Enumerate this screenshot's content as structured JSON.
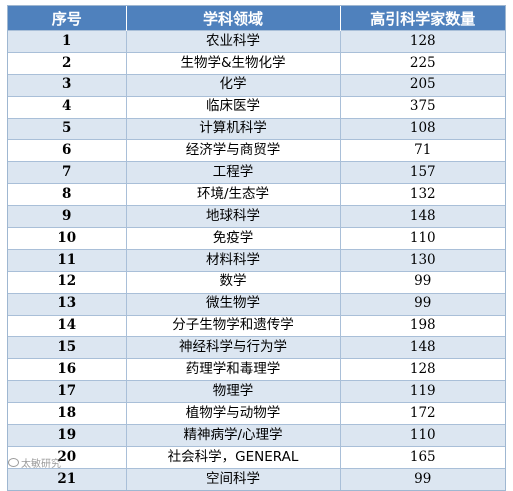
{
  "table": {
    "headers": [
      "序号",
      "学科领域",
      "高引科学家数量"
    ],
    "rows": [
      [
        "1",
        "农业科学",
        "128"
      ],
      [
        "2",
        "生物学&生物化学",
        "225"
      ],
      [
        "3",
        "化学",
        "205"
      ],
      [
        "4",
        "临床医学",
        "375"
      ],
      [
        "5",
        "计算机科学",
        "108"
      ],
      [
        "6",
        "经济学与商贸学",
        "71"
      ],
      [
        "7",
        "工程学",
        "157"
      ],
      [
        "8",
        "环境/生态学",
        "132"
      ],
      [
        "9",
        "地球科学",
        "148"
      ],
      [
        "10",
        "免疫学",
        "110"
      ],
      [
        "11",
        "材料科学",
        "130"
      ],
      [
        "12",
        "数学",
        "99"
      ],
      [
        "13",
        "微生物学",
        "99"
      ],
      [
        "14",
        "分子生物学和遗传学",
        "198"
      ],
      [
        "15",
        "神经科学与行为学",
        "148"
      ],
      [
        "16",
        "药理学和毒理学",
        "128"
      ],
      [
        "17",
        "物理学",
        "119"
      ],
      [
        "18",
        "植物学与动物学",
        "172"
      ],
      [
        "19",
        "精神病学/心理学",
        "110"
      ],
      [
        "20",
        "社会科学，GENERAL",
        "165"
      ],
      [
        "21",
        "空间科学",
        "99"
      ]
    ]
  },
  "watermark": {
    "text": "太敏研究",
    "icon": "weibo-icon"
  },
  "colors": {
    "header_bg": "#4f81bd",
    "stripe_bg": "#dce6f1"
  }
}
